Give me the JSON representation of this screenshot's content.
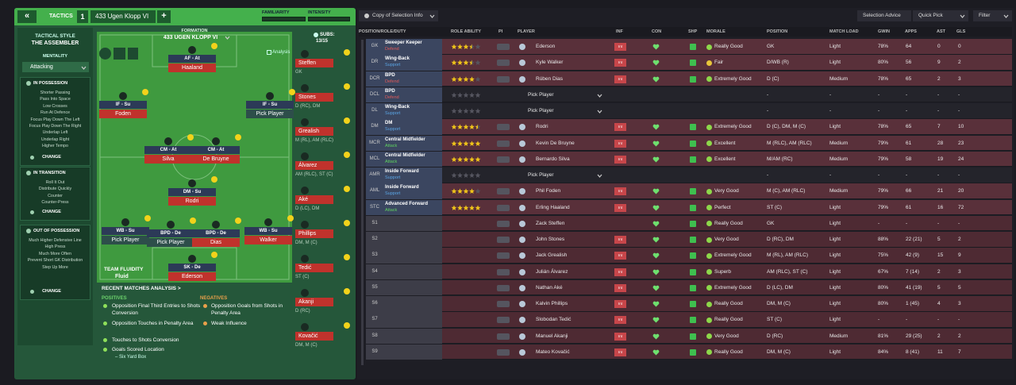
{
  "tactics_panel": {
    "header": {
      "back": "«",
      "label": "TACTICS",
      "slot": "1",
      "tactic_name": "433 Ugen Klopp VI",
      "add": "+",
      "familiarity": "FAMILIARITY",
      "intensity": "INTENSITY"
    },
    "sidebar": {
      "style_label": "TACTICAL STYLE",
      "style": "THE ASSEMBLER",
      "mentality_label": "MENTALITY",
      "mentality": "Attacking",
      "sections": [
        {
          "title": "IN POSSESSION",
          "items": [
            "Shorter Passing",
            "Pass Into Space",
            "Low Crosses",
            "Run At Defence",
            "Focus Play Down The Left",
            "Focus Play Down The Right",
            "Underlap Left",
            "Underlap Right",
            "Higher Tempo"
          ],
          "button": "CHANGE"
        },
        {
          "title": "IN TRANSITION",
          "items": [
            "Roll It Out",
            "Distribute Quickly",
            "Counter",
            "Counter-Press"
          ],
          "button": "CHANGE"
        },
        {
          "title": "OUT OF POSSESSION",
          "items": [
            "Much Higher Defensive Line",
            "High Press",
            "Much More Often",
            "Prevent Short GK Distribution",
            "Step Up More"
          ],
          "button": "CHANGE"
        }
      ]
    },
    "pitch": {
      "label": "FORMATION",
      "formation": "433 UGEN KLOPP VI",
      "analysis": "Analysis",
      "players": [
        {
          "role": "AF - At",
          "name": "Haaland"
        },
        {
          "role": "IF - Su",
          "name": "Foden"
        },
        {
          "role": "IF - Su",
          "name": "Pick Player"
        },
        {
          "role": "CM - At",
          "name": "Silva"
        },
        {
          "role": "CM - At",
          "name": "De Bruyne"
        },
        {
          "role": "DM - Su",
          "name": "Rodri"
        },
        {
          "role": "WB - Su",
          "name": "Pick Player"
        },
        {
          "role": "BPD - De",
          "name": "Pick Player"
        },
        {
          "role": "BPD - De",
          "name": "Dias"
        },
        {
          "role": "WB - Su",
          "name": "Walker"
        },
        {
          "role": "SK - De",
          "name": "Ederson"
        }
      ]
    },
    "subs": {
      "label": "SUBS:",
      "count": "13/15",
      "players": [
        {
          "name": "Steffen",
          "position": "GK"
        },
        {
          "name": "Stones",
          "position": "D (RC), DM"
        },
        {
          "name": "Grealish",
          "position": "M (RL), AM (RLC)"
        },
        {
          "name": "Álvarez",
          "position": "AM (RLC), ST (C)"
        },
        {
          "name": "Aké",
          "position": "D (LC), DM"
        },
        {
          "name": "Phillips",
          "position": "DM, M (C)"
        },
        {
          "name": "Tedić",
          "position": "ST (C)"
        },
        {
          "name": "Akanji",
          "position": "D (RC)"
        },
        {
          "name": "Kovačić",
          "position": "DM, M (C)"
        }
      ]
    },
    "fluidity": {
      "label": "TEAM FLUIDITY",
      "value": "Fluid"
    },
    "analysis": {
      "title": "RECENT MATCHES ANALYSIS >",
      "positives_label": "POSITIVES",
      "positives": [
        "Opposition Final Third Entries to Shots Conversion",
        "Opposition Touches in Penalty Area",
        "Touches to Shots Conversion",
        "Goals Scored Location"
      ],
      "positives_detail": "– Six Yard Box",
      "negatives_label": "NEGATIVES",
      "negatives": [
        "Opposition Goals from Shots in Penalty Area",
        "Weak Influence"
      ]
    }
  },
  "selection": {
    "view": "Copy of Selection Info",
    "buttons": [
      "Selection Advice",
      "Quick Pick",
      "Filter"
    ],
    "columns": [
      "POSITION/ROLE/DUTY",
      "ROLE ABILITY",
      "PI",
      "PLAYER",
      "INF",
      "CON",
      "SHP",
      "MORALE",
      "POSITION",
      "MATCH LOAD",
      "GWIN",
      "APPS",
      "AST",
      "GLS"
    ],
    "rows": [
      {
        "pos": "GK",
        "role": "Sweeper Keeper",
        "duty": "Defend",
        "stars": 3.5,
        "player": "Ederson",
        "inf": "Int",
        "morale": "Really Good",
        "position": "GK",
        "load": "Light",
        "gwin": "78%",
        "apps": "64",
        "ast": "0",
        "gls": "0"
      },
      {
        "pos": "DR",
        "role": "Wing-Back",
        "duty": "Support",
        "stars": 3.5,
        "player": "Kyle Walker",
        "inf": "Int",
        "morale": "Fair",
        "position": "D/WB (R)",
        "load": "Light",
        "gwin": "80%",
        "apps": "56",
        "ast": "9",
        "gls": "2"
      },
      {
        "pos": "DCR",
        "role": "BPD",
        "duty": "Defend",
        "stars": 4,
        "player": "Rúben Dias",
        "inf": "Int",
        "morale": "Extremely Good",
        "position": "D (C)",
        "load": "Medium",
        "gwin": "78%",
        "apps": "65",
        "ast": "2",
        "gls": "3"
      },
      {
        "pos": "DCL",
        "role": "BPD",
        "duty": "Defend",
        "stars": 0,
        "player": "Pick Player",
        "position": "-",
        "load": "-",
        "gwin": "-",
        "apps": "-",
        "ast": "-",
        "gls": "-"
      },
      {
        "pos": "DL",
        "role": "Wing-Back",
        "duty": "Support",
        "stars": 0,
        "player": "Pick Player",
        "position": "-",
        "load": "-",
        "gwin": "-",
        "apps": "-",
        "ast": "-",
        "gls": "-"
      },
      {
        "pos": "DM",
        "role": "DM",
        "duty": "Support",
        "stars": 4.5,
        "player": "Rodri",
        "inf": "Int",
        "morale": "Extremely Good",
        "position": "D (C), DM, M (C)",
        "load": "Light",
        "gwin": "78%",
        "apps": "65",
        "ast": "7",
        "gls": "10"
      },
      {
        "pos": "MCR",
        "role": "Central Midfielder",
        "duty": "Attack",
        "stars": 5,
        "player": "Kevin De Bruyne",
        "inf": "Int",
        "morale": "Excellent",
        "position": "M (RLC), AM (RLC)",
        "load": "Medium",
        "gwin": "79%",
        "apps": "61",
        "ast": "28",
        "gls": "23"
      },
      {
        "pos": "MCL",
        "role": "Central Midfielder",
        "duty": "Attack",
        "stars": 5,
        "player": "Bernardo Silva",
        "inf": "Int",
        "morale": "Excellent",
        "position": "M/AM (RC)",
        "load": "Medium",
        "gwin": "79%",
        "apps": "58",
        "ast": "19",
        "gls": "24"
      },
      {
        "pos": "AMR",
        "role": "Inside Forward",
        "duty": "Support",
        "stars": 0,
        "player": "Pick Player",
        "position": "-",
        "load": "-",
        "gwin": "-",
        "apps": "-",
        "ast": "-",
        "gls": "-"
      },
      {
        "pos": "AML",
        "role": "Inside Forward",
        "duty": "Support",
        "stars": 4,
        "player": "Phil Foden",
        "inf": "Int",
        "morale": "Very Good",
        "position": "M (C), AM (RLC)",
        "load": "Medium",
        "gwin": "79%",
        "apps": "66",
        "ast": "21",
        "gls": "20"
      },
      {
        "pos": "STC",
        "role": "Advanced Forward",
        "duty": "Attack",
        "stars": 5,
        "player": "Erling Haaland",
        "inf": "Int",
        "morale": "Perfect",
        "position": "ST (C)",
        "load": "Light",
        "gwin": "79%",
        "apps": "61",
        "ast": "16",
        "gls": "72"
      },
      {
        "pos": "S1",
        "player": "Zack Steffen",
        "morale": "Really Good",
        "position": "GK",
        "load": "Light",
        "gwin": "-",
        "apps": "-",
        "ast": "-",
        "gls": "-"
      },
      {
        "pos": "S2",
        "player": "John Stones",
        "inf": "Int",
        "morale": "Very Good",
        "position": "D (RC), DM",
        "load": "Light",
        "gwin": "88%",
        "apps": "22 (21)",
        "ast": "5",
        "gls": "2"
      },
      {
        "pos": "S3",
        "player": "Jack Grealish",
        "inf": "Int",
        "morale": "Extremely Good",
        "position": "M (RL), AM (RLC)",
        "load": "Light",
        "gwin": "75%",
        "apps": "42 (9)",
        "ast": "15",
        "gls": "9"
      },
      {
        "pos": "S4",
        "player": "Julián Álvarez",
        "inf": "Int",
        "morale": "Superb",
        "position": "AM (RLC), ST (C)",
        "load": "Light",
        "gwin": "67%",
        "apps": "7 (14)",
        "ast": "2",
        "gls": "3"
      },
      {
        "pos": "S5",
        "player": "Nathan Aké",
        "inf": "Int",
        "morale": "Extremely Good",
        "position": "D (LC), DM",
        "load": "Light",
        "gwin": "80%",
        "apps": "41 (19)",
        "ast": "5",
        "gls": "5"
      },
      {
        "pos": "S6",
        "player": "Kalvin Phillips",
        "inf": "Int",
        "morale": "Really Good",
        "position": "DM, M (C)",
        "load": "Light",
        "gwin": "80%",
        "apps": "1 (45)",
        "ast": "4",
        "gls": "3"
      },
      {
        "pos": "S7",
        "player": "Slobodan Tedić",
        "inf": "Int",
        "morale": "Really Good",
        "position": "ST (C)",
        "load": "Light",
        "gwin": "-",
        "apps": "-",
        "ast": "-",
        "gls": "-"
      },
      {
        "pos": "S8",
        "player": "Manuel Akanji",
        "inf": "Int",
        "morale": "Very Good",
        "position": "D (RC)",
        "load": "Medium",
        "gwin": "81%",
        "apps": "29 (25)",
        "ast": "2",
        "gls": "2"
      },
      {
        "pos": "S9",
        "player": "Mateo Kovačić",
        "inf": "Int",
        "morale": "Really Good",
        "position": "DM, M (C)",
        "load": "Light",
        "gwin": "84%",
        "apps": "8 (41)",
        "ast": "11",
        "gls": "7"
      }
    ]
  }
}
